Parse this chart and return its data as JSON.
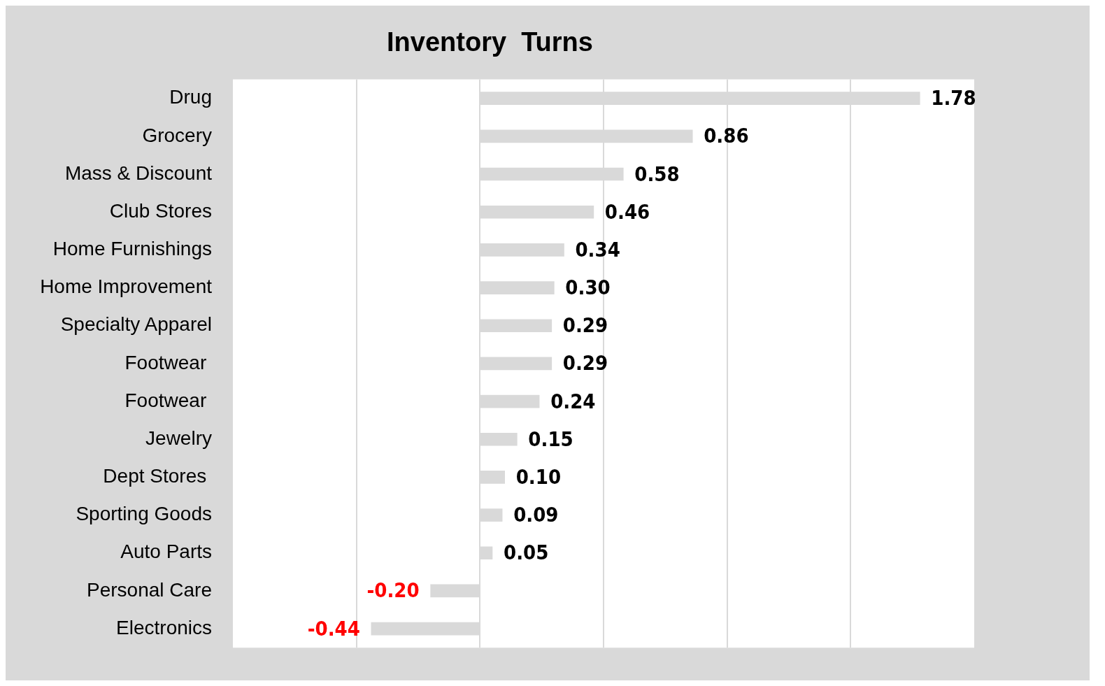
{
  "chart_data": {
    "type": "bar",
    "orientation": "horizontal",
    "title": "Inventory  Turns",
    "categories": [
      "Drug",
      "Grocery",
      "Mass & Discount",
      "Club Stores",
      "Home Furnishings",
      "Home Improvement",
      "Specialty Apparel",
      "Footwear ",
      "Footwear ",
      "Jewelry",
      "Dept Stores ",
      "Sporting Goods",
      "Auto Parts",
      "Personal Care",
      "Electronics"
    ],
    "values": [
      1.78,
      0.86,
      0.58,
      0.46,
      0.34,
      0.3,
      0.29,
      0.29,
      0.24,
      0.15,
      0.1,
      0.09,
      0.05,
      -0.2,
      -0.44
    ],
    "value_labels": [
      "1.78",
      "0.86",
      "0.58",
      "0.46",
      "0.34",
      "0.30",
      "0.29",
      "0.29",
      "0.24",
      "0.15",
      "0.10",
      "0.09",
      "0.05",
      "-0.20",
      "-0.44"
    ],
    "color": "#d9d9d9",
    "xlim": [
      -1,
      2
    ],
    "xticks": [
      {
        "value": -0.5,
        "label": null
      },
      {
        "value": 0,
        "label": null
      },
      {
        "value": 0.5,
        "label": null
      },
      {
        "value": 1,
        "label": null
      },
      {
        "value": 1.5,
        "label": null
      }
    ],
    "grid": "x",
    "tick_labels": "y",
    "legend": false
  }
}
